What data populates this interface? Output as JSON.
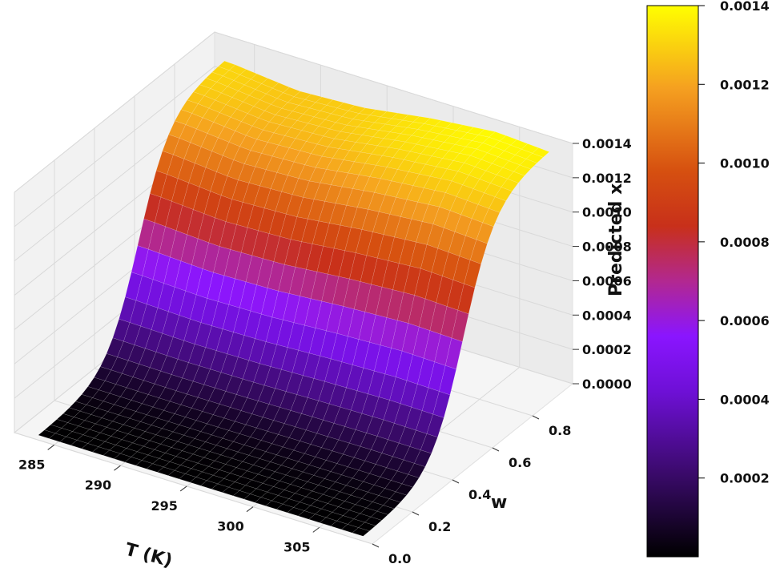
{
  "chart_data": {
    "type": "surface3d",
    "title": "",
    "xlabel": "T (K)",
    "ylabel": "w",
    "zlabel": "Predicted x",
    "x_ticks": [
      "285",
      "290",
      "295",
      "300",
      "305"
    ],
    "y_ticks": [
      "0.0",
      "0.2",
      "0.4",
      "0.6",
      "0.8"
    ],
    "z_ticks": [
      "0.0000",
      "0.0002",
      "0.0004",
      "0.0006",
      "0.0008",
      "0.0010",
      "0.0012",
      "0.0014"
    ],
    "xlim": [
      282,
      309
    ],
    "ylim": [
      0.0,
      1.0
    ],
    "zlim": [
      0.0,
      0.0014
    ],
    "colormap": "gnuplot",
    "colorbar": {
      "ticks": [
        "0.0002",
        "0.0004",
        "0.0006",
        "0.0008",
        "0.0010",
        "0.0012",
        "0.0014"
      ],
      "range": [
        0.0,
        0.0014
      ]
    },
    "surface_description_values": {
      "w_transition_center": 0.52,
      "w_transition_width": 0.08,
      "x_max_at_high_w": [
        0.00132,
        0.00128,
        0.0013,
        0.00136,
        0.0014,
        0.00138
      ],
      "x_max_T_samples": [
        284,
        289,
        294,
        299,
        304,
        308
      ]
    }
  }
}
